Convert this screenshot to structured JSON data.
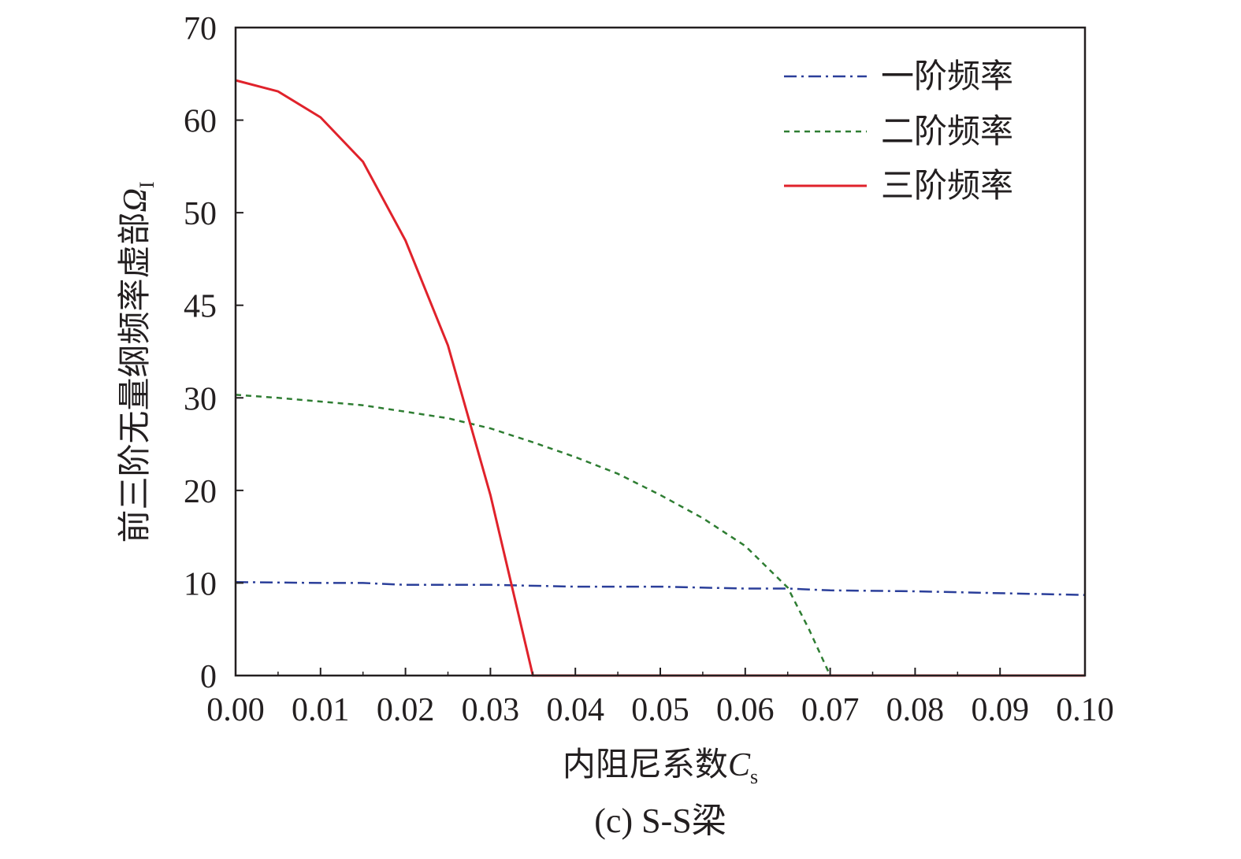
{
  "chart_data": {
    "type": "line",
    "caption": "(c) S-S梁",
    "xlabel": {
      "text": "内阻尼系数",
      "symbol": "C",
      "subscript": "s"
    },
    "ylabel": {
      "text": "前三阶无量纲频率虚部",
      "symbol": "Ω",
      "subscript": "I"
    },
    "xlim": [
      0,
      0.1
    ],
    "ylim": [
      0,
      70
    ],
    "x_ticks": [
      "0.00",
      "0.01",
      "0.02",
      "0.03",
      "0.04",
      "0.05",
      "0.06",
      "0.07",
      "0.08",
      "0.09",
      "0.10"
    ],
    "y_ticks": [
      "0",
      "10",
      "20",
      "30",
      "45",
      "50",
      "60",
      "70"
    ],
    "grid": false,
    "legend_position": "top-right",
    "series": [
      {
        "name": "一阶频率",
        "color": "#2b3f9a",
        "dash": "dashdot",
        "x": [
          0,
          0.01,
          0.015,
          0.02,
          0.03,
          0.04,
          0.05,
          0.06,
          0.065,
          0.07,
          0.08,
          0.09,
          0.1
        ],
        "y": [
          10.1,
          10.0,
          10.0,
          9.8,
          9.8,
          9.6,
          9.6,
          9.4,
          9.4,
          9.2,
          9.1,
          8.9,
          8.7
        ]
      },
      {
        "name": "二阶频率",
        "color": "#2e7d32",
        "dash": "dashed",
        "x": [
          0,
          0.005,
          0.01,
          0.015,
          0.02,
          0.025,
          0.03,
          0.035,
          0.04,
          0.045,
          0.05,
          0.055,
          0.06,
          0.065,
          0.0675,
          0.07,
          0.08,
          0.09,
          0.1
        ],
        "y": [
          30.5,
          30.0,
          29.6,
          29.2,
          28.5,
          27.8,
          26.7,
          25.2,
          23.6,
          21.8,
          19.5,
          17.0,
          14.0,
          9.5,
          5.0,
          0,
          0,
          0,
          0
        ]
      },
      {
        "name": "三阶频率",
        "color": "#e0222b",
        "dash": "solid",
        "x": [
          0,
          0.005,
          0.01,
          0.015,
          0.02,
          0.025,
          0.03,
          0.035,
          0.04,
          0.05,
          0.06,
          0.07,
          0.08,
          0.09,
          0.1
        ],
        "y": [
          64.3,
          63.1,
          60.3,
          55.5,
          48.5,
          38.5,
          19.5,
          0,
          0,
          0,
          0,
          0,
          0,
          0,
          0
        ]
      }
    ]
  }
}
